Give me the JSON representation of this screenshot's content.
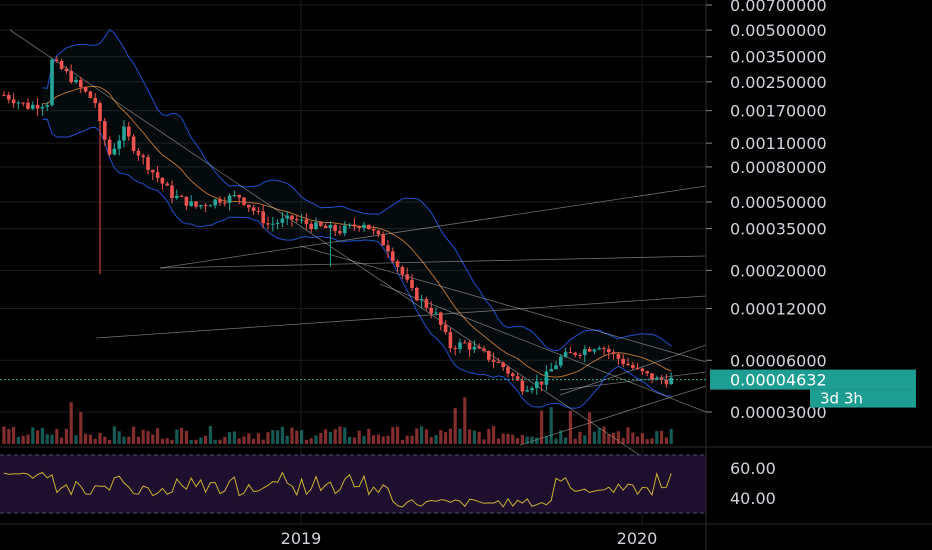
{
  "chart_data": {
    "type": "candlestick",
    "symbol_price_scale": "log",
    "price_axis_labels": [
      "0.00700000",
      "0.00500000",
      "0.00350000",
      "0.00250000",
      "0.00170000",
      "0.00110000",
      "0.00080000",
      "0.00050000",
      "0.00035000",
      "0.00020000",
      "0.00012000",
      "0.00006000",
      "0.00004632",
      "0.00003000"
    ],
    "price_axis_values": [
      0.007,
      0.005,
      0.0035,
      0.0025,
      0.0017,
      0.0011,
      0.0008,
      0.0005,
      0.00035,
      0.0002,
      0.00012,
      6e-05,
      4.632e-05,
      3e-05
    ],
    "current_price_label": "0.00004632",
    "current_price": 4.632e-05,
    "countdown_label": "3d 3h",
    "time_axis_labels": [
      "2019",
      "2020"
    ],
    "rsi_axis_labels": [
      "60.00",
      "40.00"
    ],
    "rsi_levels": [
      70,
      30
    ],
    "candle_count": 140,
    "close_path_anchors": [
      [
        0,
        0.0021
      ],
      [
        5,
        0.0018
      ],
      [
        9,
        0.0019
      ],
      [
        10,
        0.0033
      ],
      [
        13,
        0.0028
      ],
      [
        16,
        0.0023
      ],
      [
        19,
        0.0019
      ],
      [
        20,
        0.0014
      ],
      [
        22,
        0.00095
      ],
      [
        25,
        0.0013
      ],
      [
        27,
        0.00105
      ],
      [
        31,
        0.00075
      ],
      [
        35,
        0.00055
      ],
      [
        40,
        0.00047
      ],
      [
        45,
        0.00052
      ],
      [
        49,
        0.00054
      ],
      [
        55,
        0.00037
      ],
      [
        60,
        0.0004
      ],
      [
        65,
        0.00036
      ],
      [
        70,
        0.00034
      ],
      [
        75,
        0.00038
      ],
      [
        80,
        0.00027
      ],
      [
        85,
        0.00015
      ],
      [
        90,
        0.00011
      ],
      [
        93,
        7.2e-05
      ],
      [
        96,
        7.5e-05
      ],
      [
        100,
        6.5e-05
      ],
      [
        104,
        5.5e-05
      ],
      [
        108,
        4.2e-05
      ],
      [
        112,
        4.5e-05
      ],
      [
        116,
        6.2e-05
      ],
      [
        120,
        6.8e-05
      ],
      [
        124,
        7.4e-05
      ],
      [
        127,
        6.4e-05
      ],
      [
        132,
        5.2e-05
      ],
      [
        136,
        4.6e-05
      ],
      [
        139,
        4.632e-05
      ]
    ],
    "colors": {
      "up": "#26a69a",
      "down": "#ef5350",
      "bollinger": "#2962ff",
      "ema": "#c87a33",
      "trendline": "#c8c8c8",
      "rsi_line": "#c9b030",
      "rsi_band": "#1e0f2e",
      "price_label_bg": "#1e9e92",
      "grid": "#1c1c1c"
    }
  }
}
